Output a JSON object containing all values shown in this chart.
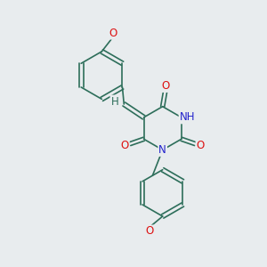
{
  "background_color": "#e8ecee",
  "bond_color": "#2d6e5a",
  "atom_colors": {
    "O": "#dd1111",
    "N": "#2222cc",
    "H": "#2d6e5a",
    "C": "#2d6e5a"
  },
  "font_size_atom": 8.5,
  "fig_width": 3.0,
  "fig_height": 3.0,
  "dpi": 100,
  "lw": 1.2
}
